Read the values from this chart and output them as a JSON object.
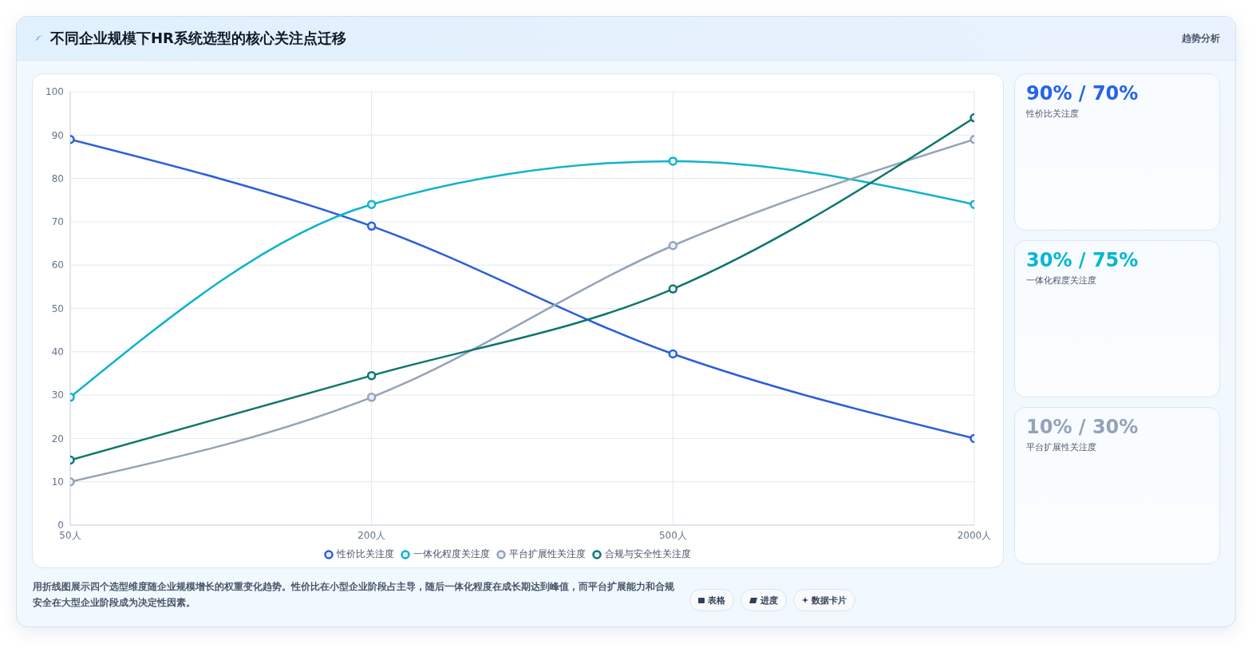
{
  "chart_data": [
    {
      "type": "line",
      "title": "不同企业规模下HR系统选型的核心关注点迁移",
      "categories": [
        "50人",
        "200人",
        "500人",
        "2000人"
      ],
      "series": [
        {
          "name": "性价比关注度",
          "color": "#2b5fd9",
          "values": [
            89,
            69,
            39.5,
            20
          ]
        },
        {
          "name": "一体化程度关注度",
          "color": "#0fb3cc",
          "values": [
            29.5,
            74,
            84,
            74
          ]
        },
        {
          "name": "平台扩展性关注度",
          "color": "#94a3b8",
          "values": [
            10,
            29.5,
            64.5,
            89
          ]
        },
        {
          "name": "合规与安全性关注度",
          "color": "#0f766e",
          "values": [
            15,
            34.5,
            54.5,
            94
          ]
        }
      ],
      "ylim": [
        0,
        100
      ],
      "yticks": [
        0,
        10,
        20,
        30,
        40,
        50,
        60,
        70,
        80,
        90,
        100
      ],
      "grid": true,
      "legend": "bottom",
      "marker": "circle",
      "line_style": "solid",
      "annotations": [
        "用折线图展示四个选型维度随企业规模增长的权重变化趋势。性价比在小型企业阶段占主导，随后一体化程度在成长期达到峰值，而平台扩展能力和合规安全在大型企业阶段成为决定性因素。",
        "表格",
        "进度",
        "数据卡片"
      ]
    },
    {
      "type": "other",
      "title": "趋势分析",
      "annotations": [
        "90% / 70%",
        "性价比关注度",
        "30% / 75%",
        "一体化程度关注度",
        "10% / 30%",
        "平台扩展性关注度"
      ],
      "colors": [
        "#2563eb",
        "#06b6d4",
        "#94a3b8"
      ]
    }
  ]
}
